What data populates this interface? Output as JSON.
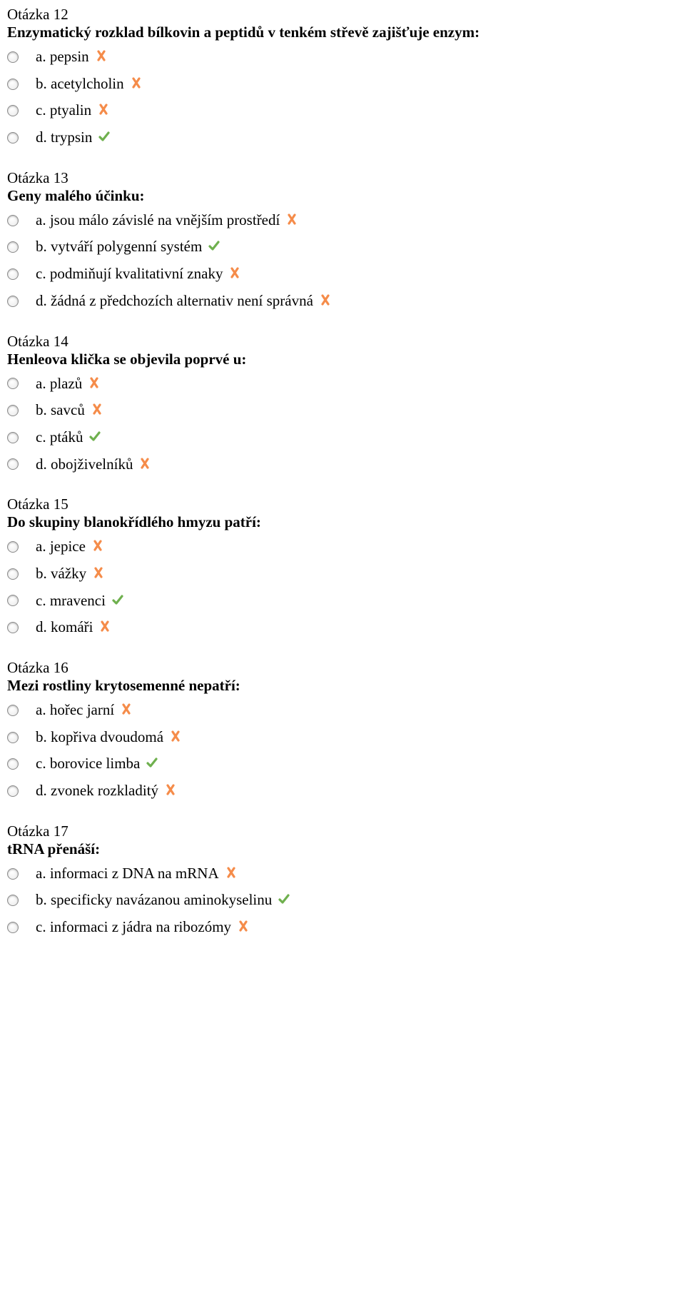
{
  "colors": {
    "text": "#000000",
    "background": "#ffffff",
    "cross": "#f58c4a",
    "check": "#6fb04e",
    "radio_border": "#8a8a8a"
  },
  "typography": {
    "font_family": "Times New Roman",
    "font_size_pt": 16,
    "title_weight": "normal",
    "question_weight": "bold"
  },
  "questions": [
    {
      "title": "Otázka 12",
      "text": "Enzymatický rozklad bílkovin a peptidů v tenkém střevě zajišťuje enzym:",
      "options": [
        {
          "label": "a. pepsin",
          "correct": false
        },
        {
          "label": "b. acetylcholin",
          "correct": false
        },
        {
          "label": "c. ptyalin",
          "correct": false
        },
        {
          "label": "d. trypsin",
          "correct": true
        }
      ]
    },
    {
      "title": "Otázka 13",
      "text": "Geny malého účinku:",
      "options": [
        {
          "label": "a. jsou málo závislé na vnějším prostředí",
          "correct": false
        },
        {
          "label": "b. vytváří polygenní systém",
          "correct": true
        },
        {
          "label": "c. podmiňují kvalitativní znaky",
          "correct": false
        },
        {
          "label": "d. žádná z předchozích alternativ není správná",
          "correct": false
        }
      ]
    },
    {
      "title": "Otázka 14",
      "text": "Henleova klička se objevila poprvé u:",
      "options": [
        {
          "label": "a. plazů",
          "correct": false
        },
        {
          "label": "b. savců",
          "correct": false
        },
        {
          "label": "c. ptáků",
          "correct": true
        },
        {
          "label": "d. obojživelníků",
          "correct": false
        }
      ]
    },
    {
      "title": "Otázka 15",
      "text": "Do skupiny blanokřídlého hmyzu patří:",
      "options": [
        {
          "label": "a. jepice",
          "correct": false
        },
        {
          "label": "b. vážky",
          "correct": false
        },
        {
          "label": "c. mravenci",
          "correct": true
        },
        {
          "label": "d. komáři",
          "correct": false
        }
      ]
    },
    {
      "title": "Otázka 16",
      "text": "Mezi rostliny krytosemenné nepatří:",
      "options": [
        {
          "label": "a. hořec jarní",
          "correct": false
        },
        {
          "label": "b. kopřiva dvoudomá",
          "correct": false
        },
        {
          "label": "c. borovice limba",
          "correct": true
        },
        {
          "label": "d. zvonek rozkladitý",
          "correct": false
        }
      ]
    },
    {
      "title": "Otázka 17",
      "text": "tRNA přenáší:",
      "options": [
        {
          "label": "a. informaci z DNA na mRNA",
          "correct": false
        },
        {
          "label": "b. specificky navázanou aminokyselinu",
          "correct": true
        },
        {
          "label": "c. informaci z jádra na ribozómy",
          "correct": false
        }
      ]
    }
  ]
}
